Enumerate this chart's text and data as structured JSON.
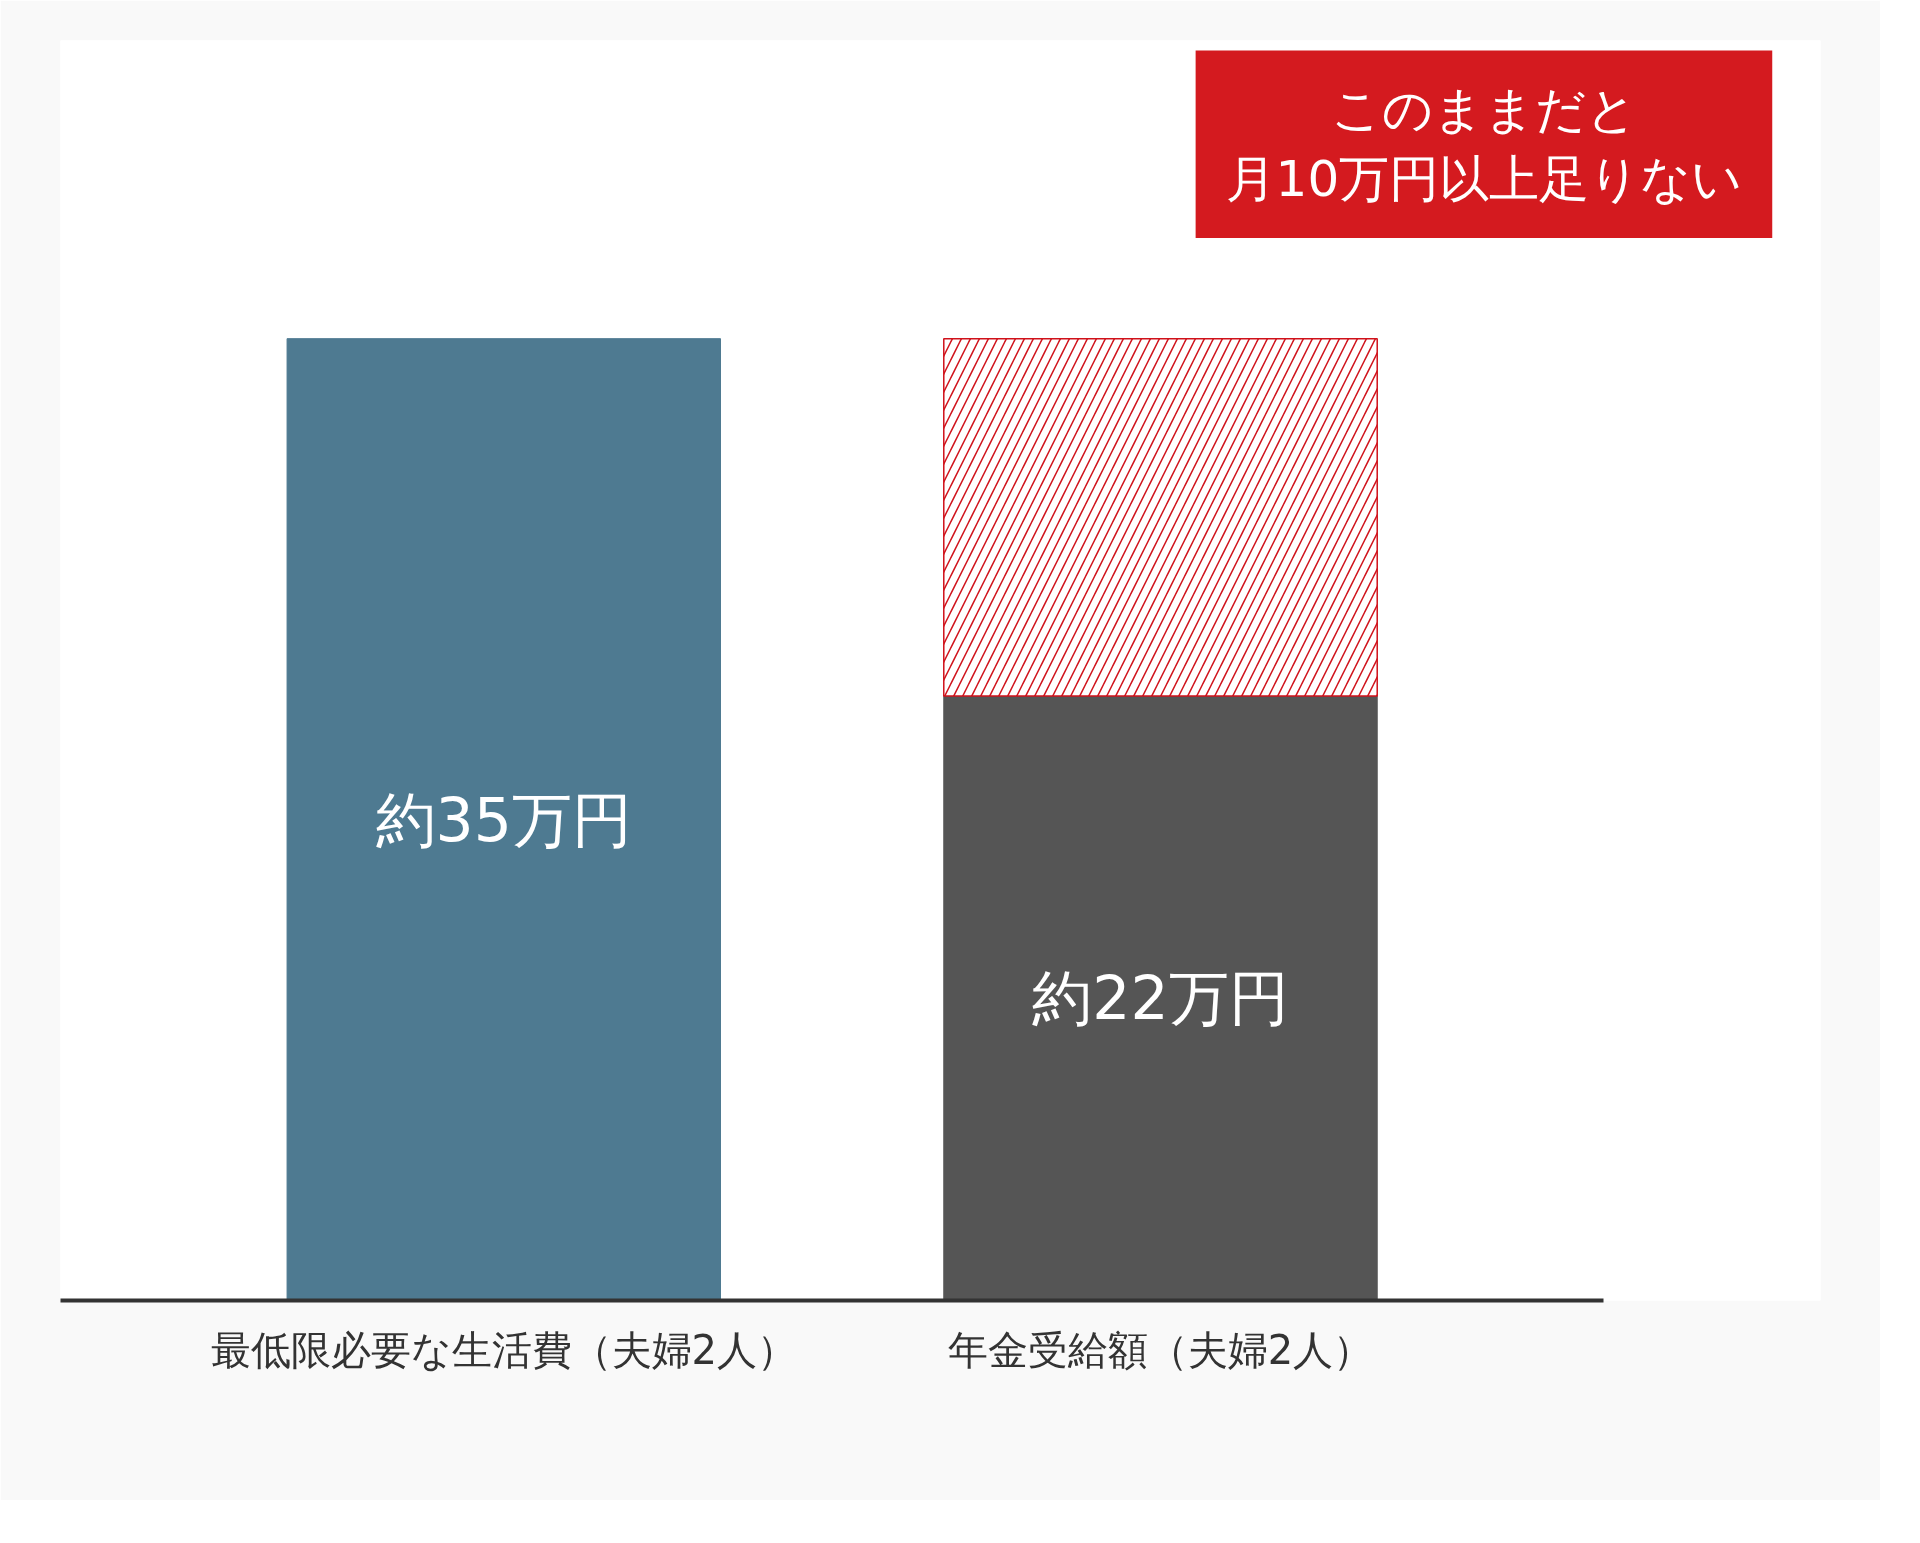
{
  "chart_data": {
    "type": "bar",
    "stacked": true,
    "categories": [
      "最低限必要な生活費（夫婦2人）",
      "年金受給額（夫婦2人）"
    ],
    "series": [
      {
        "colors": [
          "#4e7a91",
          "#555555"
        ],
        "values": [
          35,
          22
        ],
        "value_labels": [
          "約35万円",
          "約22万円"
        ]
      },
      {
        "color": "#d0121b",
        "values": [
          null,
          13
        ]
      }
    ],
    "tick_labels": "x",
    "grid": false,
    "annotations": [
      "このままだと",
      "月10万円以上足りない"
    ]
  }
}
